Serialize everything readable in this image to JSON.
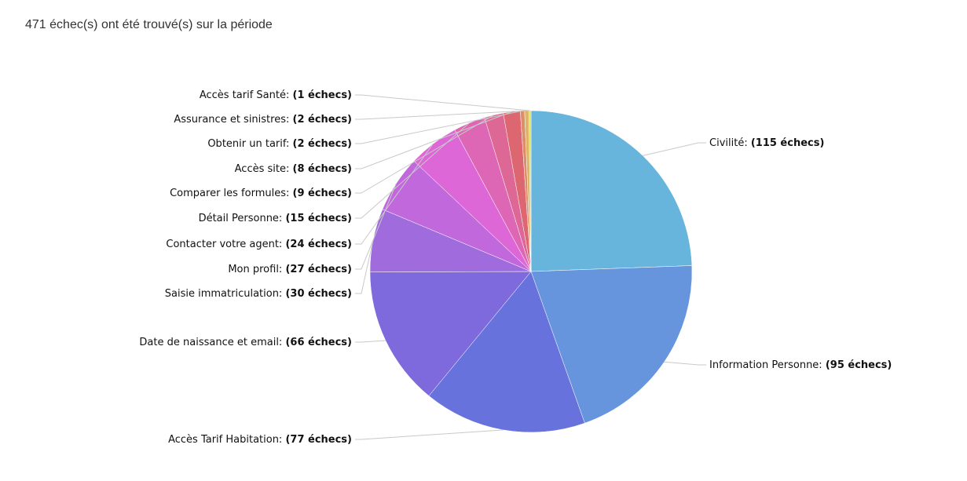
{
  "summary_text": "471 échec(s) ont été trouvé(s) sur la période",
  "chart_data": {
    "type": "pie",
    "title": "",
    "total": 471,
    "slices": [
      {
        "label": "Civilité:",
        "value": 115,
        "value_text": "(115 échecs)",
        "color": "#67b5dd"
      },
      {
        "label": "Information Personne:",
        "value": 95,
        "value_text": "(95 échecs)",
        "color": "#6795dd"
      },
      {
        "label": "Accès Tarif Habitation:",
        "value": 77,
        "value_text": "(77 échecs)",
        "color": "#6872dd"
      },
      {
        "label": "Date de naissance et email:",
        "value": 66,
        "value_text": "(66 échecs)",
        "color": "#7e6add"
      },
      {
        "label": "Saisie immatriculation:",
        "value": 30,
        "value_text": "(30 échecs)",
        "color": "#a06bdd"
      },
      {
        "label": "Mon profil:",
        "value": 27,
        "value_text": "(27 échecs)",
        "color": "#c168dd"
      },
      {
        "label": "Contacter votre agent:",
        "value": 24,
        "value_text": "(24 échecs)",
        "color": "#dd67d7"
      },
      {
        "label": "Détail Personne:",
        "value": 15,
        "value_text": "(15 échecs)",
        "color": "#dd67b5"
      },
      {
        "label": "Comparer les formules:",
        "value": 9,
        "value_text": "(9 échecs)",
        "color": "#dd6795"
      },
      {
        "label": "Accès site:",
        "value": 8,
        "value_text": "(8 échecs)",
        "color": "#dd6770"
      },
      {
        "label": "Obtenir un tarif:",
        "value": 2,
        "value_text": "(2 échecs)",
        "color": "#dd8d67"
      },
      {
        "label": "Assurance et sinistres:",
        "value": 2,
        "value_text": "(2 échecs)",
        "color": "#ddb567"
      },
      {
        "label": "Accès tarif Santé:",
        "value": 1,
        "value_text": "(1 échecs)",
        "color": "#d9dd67"
      }
    ]
  }
}
